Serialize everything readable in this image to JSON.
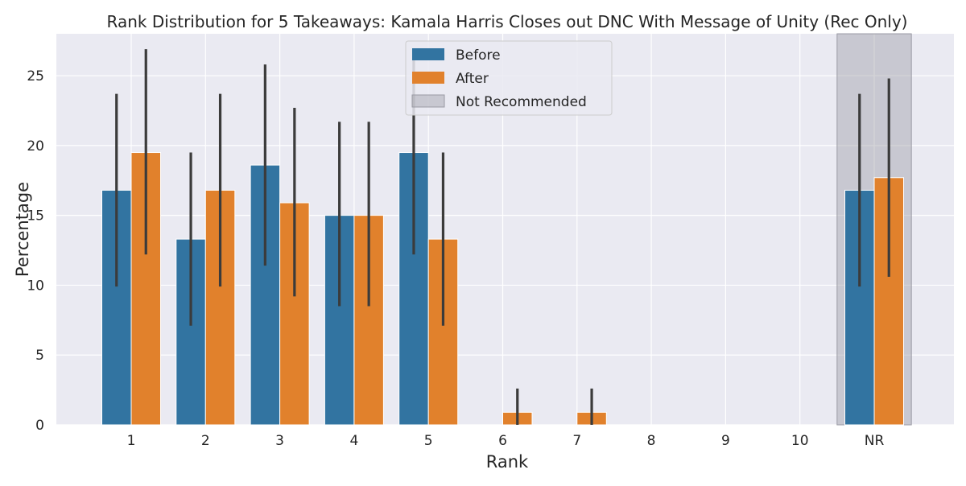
{
  "chart_data": {
    "type": "bar",
    "title": "Rank Distribution for 5 Takeaways: Kamala Harris Closes out DNC With Message of Unity (Rec Only)",
    "xlabel": "Rank",
    "ylabel": "Percentage",
    "categories": [
      "1",
      "2",
      "3",
      "4",
      "5",
      "6",
      "7",
      "8",
      "9",
      "10",
      "NR"
    ],
    "ylim": [
      0,
      28
    ],
    "yticks": [
      0,
      5,
      10,
      15,
      20,
      25
    ],
    "grid": true,
    "legend_position": "top-center",
    "series": [
      {
        "name": "Before",
        "color": "#3274a1",
        "values": [
          16.8,
          13.3,
          18.6,
          15.0,
          19.5,
          0,
          0,
          0,
          0,
          0,
          16.8
        ],
        "ci_low": [
          9.9,
          7.1,
          11.4,
          8.5,
          12.2,
          0,
          0,
          0,
          0,
          0,
          9.9
        ],
        "ci_high": [
          23.7,
          19.5,
          25.8,
          21.7,
          26.2,
          0,
          0,
          0,
          0,
          0,
          23.7
        ]
      },
      {
        "name": "After",
        "color": "#e1812c",
        "values": [
          19.5,
          16.8,
          15.9,
          15.0,
          13.3,
          0.9,
          0.9,
          0,
          0,
          0,
          17.7
        ],
        "ci_low": [
          12.2,
          9.9,
          9.2,
          8.5,
          7.1,
          0,
          0,
          0,
          0,
          0,
          10.6
        ],
        "ci_high": [
          26.9,
          23.7,
          22.7,
          21.7,
          19.5,
          2.6,
          2.6,
          0,
          0,
          0,
          24.8
        ]
      }
    ],
    "shaded_region": {
      "category": "NR",
      "label": "Not Recommended",
      "color": "#a0a0a8"
    }
  }
}
